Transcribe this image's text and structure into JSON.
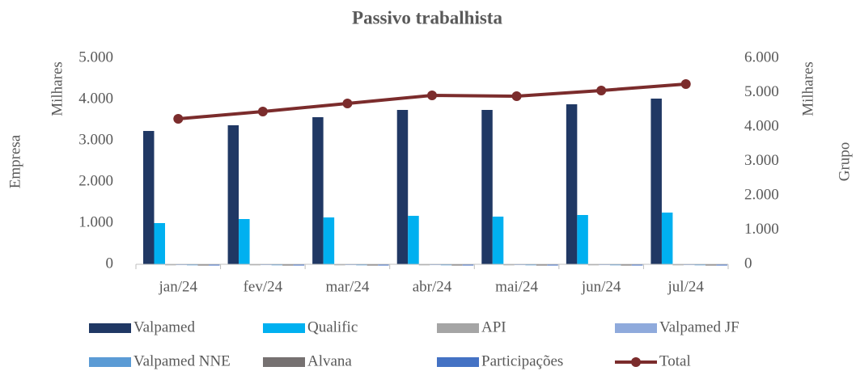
{
  "chart_data": {
    "type": "bar",
    "title": "Passivo trabalhista",
    "y_label": "Empresa",
    "y_unit": "Milhares",
    "y2_label": "Grupo",
    "y2_unit": "Milhares",
    "categories": [
      "jan/24",
      "fev/24",
      "mar/24",
      "abr/24",
      "mai/24",
      "jun/24",
      "jul/24"
    ],
    "ylim": [
      0,
      5000
    ],
    "yticks": [
      0,
      {
        "value": 1000,
        "label": "1.000"
      },
      {
        "value": 2000,
        "label": "2.000"
      },
      {
        "value": 3000,
        "label": "3.000"
      },
      {
        "value": 4000,
        "label": "4.000"
      },
      {
        "value": 5000,
        "label": "5.000"
      }
    ],
    "y2lim": [
      0,
      6000
    ],
    "y2ticks": [
      0,
      {
        "value": 1000,
        "label": "1.000"
      },
      {
        "value": 2000,
        "label": "2.000"
      },
      {
        "value": 3000,
        "label": "3.000"
      },
      {
        "value": 4000,
        "label": "4.000"
      },
      {
        "value": 5000,
        "label": "5.000"
      },
      {
        "value": 6000,
        "label": "6.000"
      }
    ],
    "grid": false,
    "legend": "bottom",
    "series": [
      {
        "name": "Valpamed",
        "color": "#203864",
        "values": [
          3235,
          3373,
          3569,
          3745,
          3745,
          3882,
          4020
        ]
      },
      {
        "name": "Qualific",
        "color": "#00b0f0",
        "values": [
          1000,
          1098,
          1137,
          1176,
          1157,
          1196,
          1255
        ]
      },
      {
        "name": "API",
        "color": "#a5a5a5",
        "values": [
          5,
          5,
          5,
          5,
          5,
          5,
          5
        ]
      },
      {
        "name": "Valpamed JF",
        "color": "#8faadc",
        "values": [
          10,
          10,
          10,
          10,
          10,
          10,
          10
        ]
      },
      {
        "name": "Valpamed NNE",
        "color": "#5b9bd5",
        "values": [
          5,
          5,
          5,
          5,
          5,
          5,
          5
        ]
      },
      {
        "name": "Alvana",
        "color": "#767171",
        "values": [
          0,
          0,
          0,
          0,
          0,
          0,
          0
        ]
      },
      {
        "name": "Participações",
        "color": "#4472c4",
        "values": [
          0,
          0,
          0,
          0,
          0,
          0,
          0
        ]
      },
      {
        "name": "Total",
        "color": "#7b2c2c",
        "type": "line",
        "axis": "y2",
        "values": [
          4235,
          4447,
          4682,
          4918,
          4894,
          5059,
          5247
        ]
      }
    ]
  }
}
